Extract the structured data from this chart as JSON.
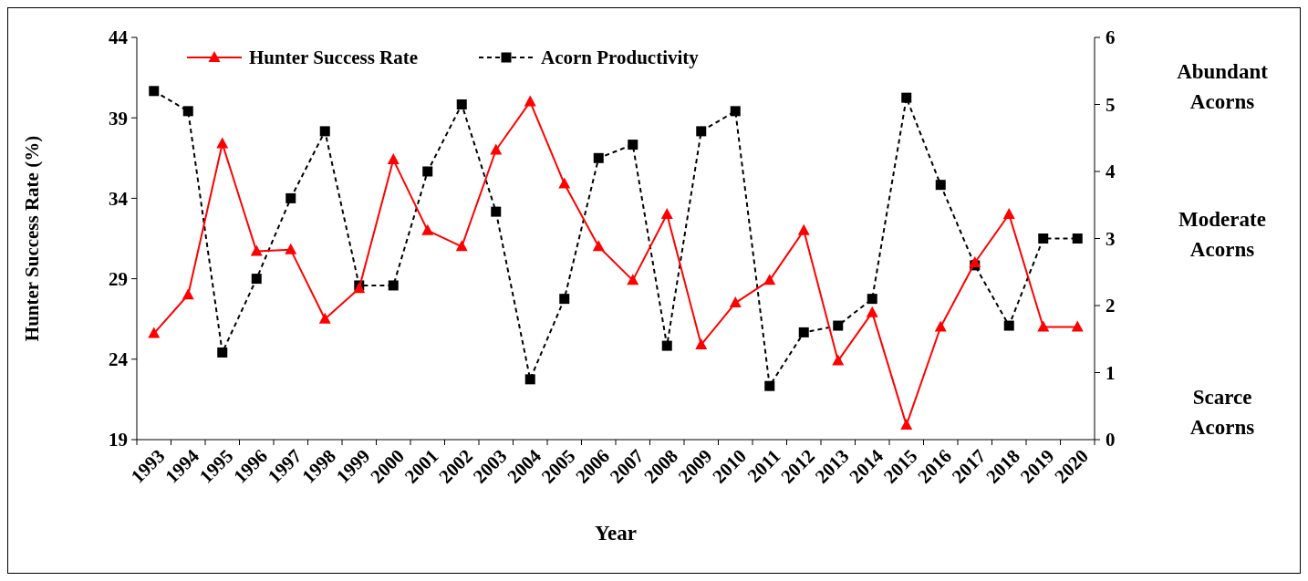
{
  "chart_data": {
    "type": "line",
    "xlabel": "Year",
    "ylabel": "Hunter Success Rate (%)",
    "categories": [
      "1993",
      "1994",
      "1995",
      "1996",
      "1997",
      "1998",
      "1999",
      "2000",
      "2001",
      "2002",
      "2003",
      "2004",
      "2005",
      "2006",
      "2007",
      "2008",
      "2009",
      "2010",
      "2011",
      "2012",
      "2013",
      "2014",
      "2015",
      "2016",
      "2017",
      "2018",
      "2019",
      "2020"
    ],
    "series": [
      {
        "name": "Hunter Success Rate",
        "color": "#ff0000",
        "marker": "triangle",
        "line_style": "solid",
        "values": [
          25.6,
          28.0,
          37.4,
          30.7,
          30.8,
          26.5,
          28.4,
          36.4,
          32.0,
          31.0,
          37.0,
          40.0,
          34.9,
          31.0,
          28.9,
          33.0,
          24.9,
          27.5,
          28.9,
          32.0,
          23.9,
          26.9,
          19.9,
          26.0,
          30.0,
          33.0,
          26.0,
          26.0
        ]
      },
      {
        "name": "Acorn Productivity",
        "color": "#000000",
        "marker": "square",
        "line_style": "dashed",
        "axis": "y2",
        "values": [
          5.2,
          4.9,
          1.3,
          2.4,
          3.6,
          4.6,
          2.3,
          2.3,
          4.0,
          5.0,
          3.4,
          0.9,
          2.1,
          4.2,
          4.4,
          1.4,
          4.6,
          4.9,
          0.8,
          1.6,
          1.7,
          2.1,
          5.1,
          3.8,
          2.6,
          1.7,
          3.0,
          3.0
        ]
      }
    ],
    "ylim": [
      19,
      44
    ],
    "yticks": [
      19,
      24,
      29,
      34,
      39,
      44
    ],
    "y2lim": [
      0,
      6
    ],
    "y2ticks": [
      0,
      1,
      2,
      3,
      4,
      5,
      6
    ],
    "legend": "top left",
    "grid": false,
    "annotations": [
      "Abundant Acorns",
      "Moderate Acorns",
      "Scarce Acorns"
    ]
  }
}
